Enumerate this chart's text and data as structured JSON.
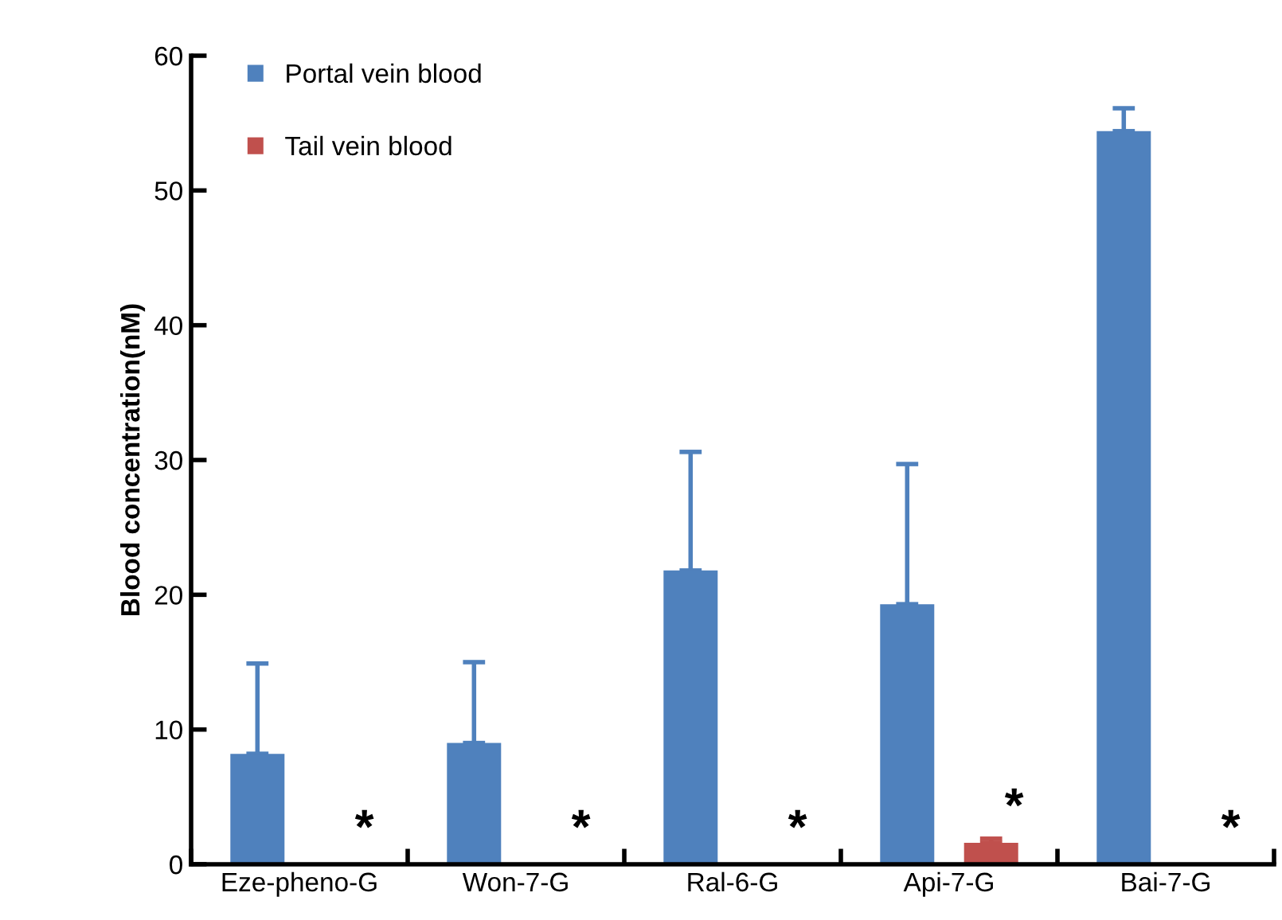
{
  "chart_data": {
    "type": "bar",
    "ylabel": "Blood concentration(nM)",
    "categories": [
      "Eze-pheno-G",
      "Won-7-G",
      "Ral-6-G",
      "Api-7-G",
      "Bai-7-G"
    ],
    "series": [
      {
        "name": "Portal vein blood",
        "color": "#4f81bd",
        "values": [
          8.2,
          9.0,
          21.8,
          19.3,
          54.4
        ],
        "errors": [
          [
            8.2,
            14.9
          ],
          [
            9.0,
            15.0
          ],
          [
            21.8,
            30.6
          ],
          [
            19.3,
            29.7
          ],
          [
            54.4,
            56.1
          ]
        ]
      },
      {
        "name": "Tail vein blood",
        "color": "#c0504d",
        "values": [
          null,
          null,
          null,
          1.6,
          null
        ],
        "errors": [
          null,
          null,
          null,
          [
            1.6,
            1.9
          ],
          null
        ]
      }
    ],
    "annotations": [
      "*",
      "*",
      "*",
      "*",
      "*"
    ],
    "ylim": [
      0,
      60
    ],
    "yticks": [
      0,
      10,
      20,
      30,
      40,
      50,
      60
    ],
    "grid": false,
    "legend": "top left"
  }
}
